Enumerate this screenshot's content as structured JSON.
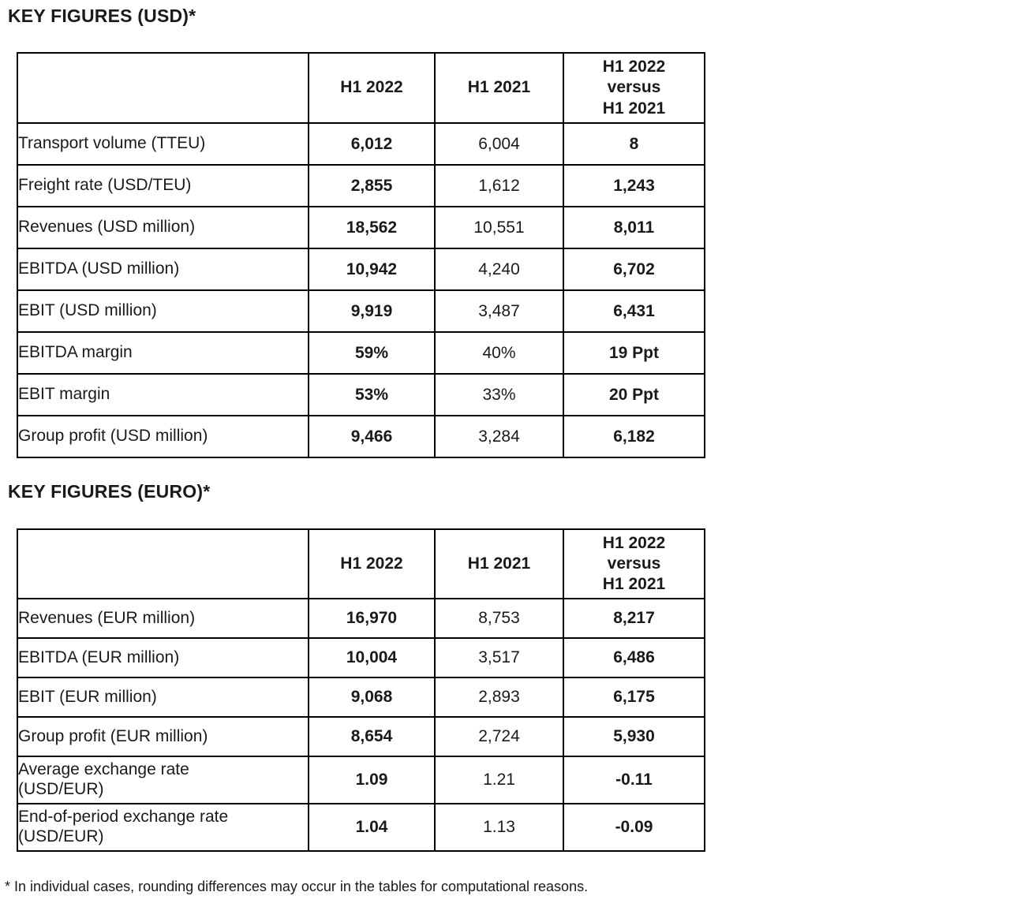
{
  "usd_table": {
    "title": "KEY FIGURES (USD)*",
    "headers": {
      "h1_2022": "H1 2022",
      "h1_2021": "H1 2021",
      "versus": "H1 2022\nversus\nH1 2021"
    },
    "rows": [
      {
        "label": "Transport volume (TTEU)",
        "h1_2022": "6,012",
        "h1_2021": "6,004",
        "delta": "8"
      },
      {
        "label": "Freight rate (USD/TEU)",
        "h1_2022": "2,855",
        "h1_2021": "1,612",
        "delta": "1,243"
      },
      {
        "label": "Revenues (USD million)",
        "h1_2022": "18,562",
        "h1_2021": "10,551",
        "delta": "8,011"
      },
      {
        "label": "EBITDA (USD million)",
        "h1_2022": "10,942",
        "h1_2021": "4,240",
        "delta": "6,702"
      },
      {
        "label": "EBIT (USD million)",
        "h1_2022": "9,919",
        "h1_2021": "3,487",
        "delta": "6,431"
      },
      {
        "label": "EBITDA margin",
        "h1_2022": "59%",
        "h1_2021": "40%",
        "delta": "19 Ppt"
      },
      {
        "label": "EBIT margin",
        "h1_2022": "53%",
        "h1_2021": "33%",
        "delta": "20 Ppt"
      },
      {
        "label": "Group profit (USD million)",
        "h1_2022": "9,466",
        "h1_2021": "3,284",
        "delta": "6,182"
      }
    ]
  },
  "euro_table": {
    "title": "KEY FIGURES (EURO)*",
    "headers": {
      "h1_2022": "H1 2022",
      "h1_2021": "H1 2021",
      "versus": "H1 2022\nversus\nH1 2021"
    },
    "rows": [
      {
        "label": "Revenues (EUR million)",
        "h1_2022": "16,970",
        "h1_2021": "8,753",
        "delta": "8,217"
      },
      {
        "label": "EBITDA (EUR million)",
        "h1_2022": "10,004",
        "h1_2021": "3,517",
        "delta": "6,486"
      },
      {
        "label": "EBIT (EUR million)",
        "h1_2022": "9,068",
        "h1_2021": "2,893",
        "delta": "6,175"
      },
      {
        "label": "Group profit (EUR million)",
        "h1_2022": "8,654",
        "h1_2021": "2,724",
        "delta": "5,930"
      },
      {
        "label": "Average exchange rate\n(USD/EUR)",
        "h1_2022": "1.09",
        "h1_2021": "1.21",
        "delta": "-0.11"
      },
      {
        "label": "End-of-period exchange rate\n(USD/EUR)",
        "h1_2022": "1.04",
        "h1_2021": "1.13",
        "delta": "-0.09"
      }
    ]
  },
  "footnote": "* In individual cases, rounding differences may occur in the tables for computational reasons.",
  "colors": {
    "text": "#1a1a1a",
    "border": "#000000",
    "background": "#ffffff"
  }
}
